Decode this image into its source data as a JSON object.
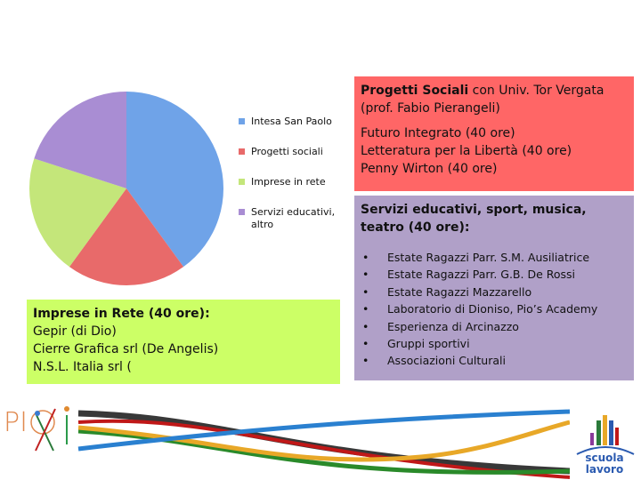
{
  "chart_data": {
    "type": "pie",
    "categories": [
      "Intesa San Paolo",
      "Progetti sociali",
      "Imprese in rete",
      "Servizi educativi, altro"
    ],
    "values": [
      40,
      20,
      20,
      20
    ],
    "colors": [
      "#6fa3e8",
      "#e86a6a",
      "#c4e67a",
      "#a98dd3"
    ],
    "legend": "right",
    "start": "top, clockwise"
  },
  "red_box": {
    "title_bold": "Progetti Sociali",
    "title_rest": " con Univ. Tor Vergata (prof. Fabio Pierangeli)",
    "lines": [
      "Futuro Integrato (40 ore)",
      "Letteratura per la Libertà (40 ore)",
      "Penny Wirton (40 ore)"
    ]
  },
  "purple_box": {
    "title": "Servizi educativi, sport, musica, teatro (40 ore):",
    "items": [
      "Estate Ragazzi Parr. S.M. Ausiliatrice",
      "Estate Ragazzi Parr. G.B. De Rossi",
      "Estate Ragazzi Mazzarello",
      "Laboratorio di Dioniso, Pio’s Academy",
      "Esperienza di Arcinazzo",
      "Gruppi sportivi",
      "Associazioni Culturali"
    ]
  },
  "green_box": {
    "title": "Imprese in Rete (40 ore):",
    "lines": [
      "Gepir (di Dio)",
      "Cierre Grafica srl (De Angelis)",
      "N.S.L. Italia srl ("
    ]
  },
  "logos": {
    "left": "PIO XI",
    "right": "scuola lavoro"
  }
}
